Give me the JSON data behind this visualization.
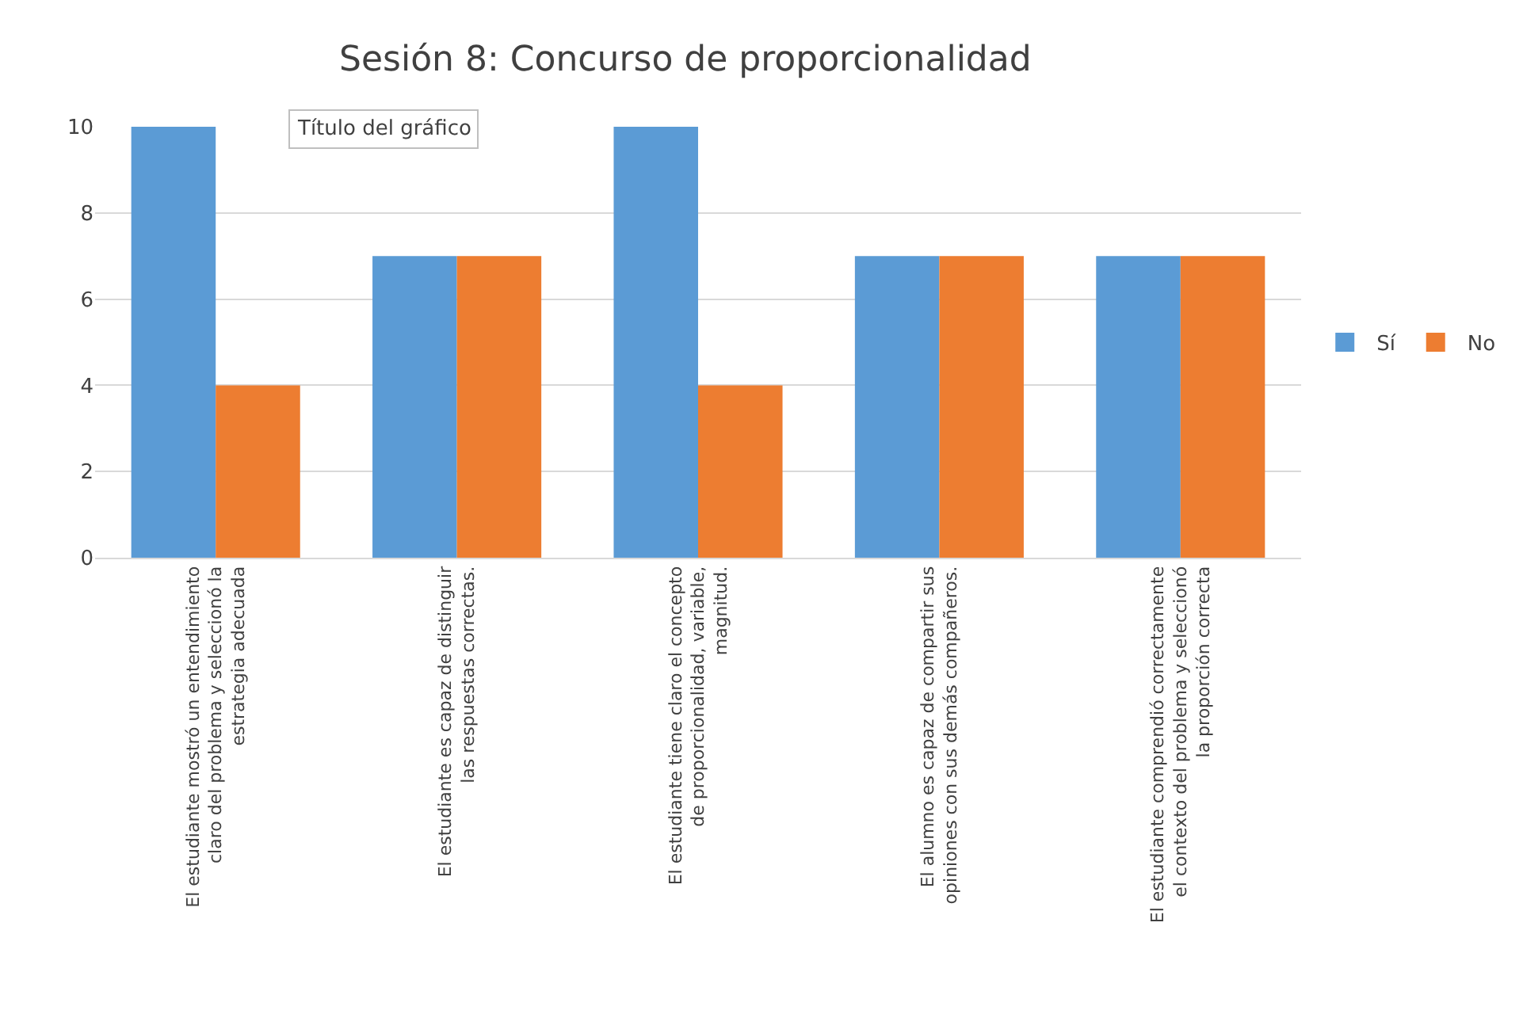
{
  "chart_data": {
    "type": "bar",
    "title": "Sesión 8: Concurso de proporcionalidad",
    "categories": [
      "El estudiante mostró un entendimiento claro del problema y seleccionó la estrategia adecuada",
      "El estudiante es capaz de distinguir las respuestas correctas.",
      "El estudiante tiene claro el concepto de proporcionalidad, variable, magnitud.",
      "El alumno es capaz de compartir sus opiniones con sus demás compañeros.",
      "El estudiante comprendió correctamente el contexto del problema y seleccionó la proporción correcta"
    ],
    "series": [
      {
        "name": "Sí",
        "color": "#5b9bd5",
        "values": [
          10,
          7,
          10,
          7,
          7
        ]
      },
      {
        "name": "No",
        "color": "#ed7d31",
        "values": [
          4,
          7,
          4,
          7,
          7
        ]
      }
    ],
    "ylim": [
      0,
      10
    ],
    "yticks": [
      0,
      2,
      4,
      6,
      8,
      10
    ],
    "grid": "y",
    "legend": "right",
    "annotations": [
      "Título del gráfico"
    ]
  }
}
